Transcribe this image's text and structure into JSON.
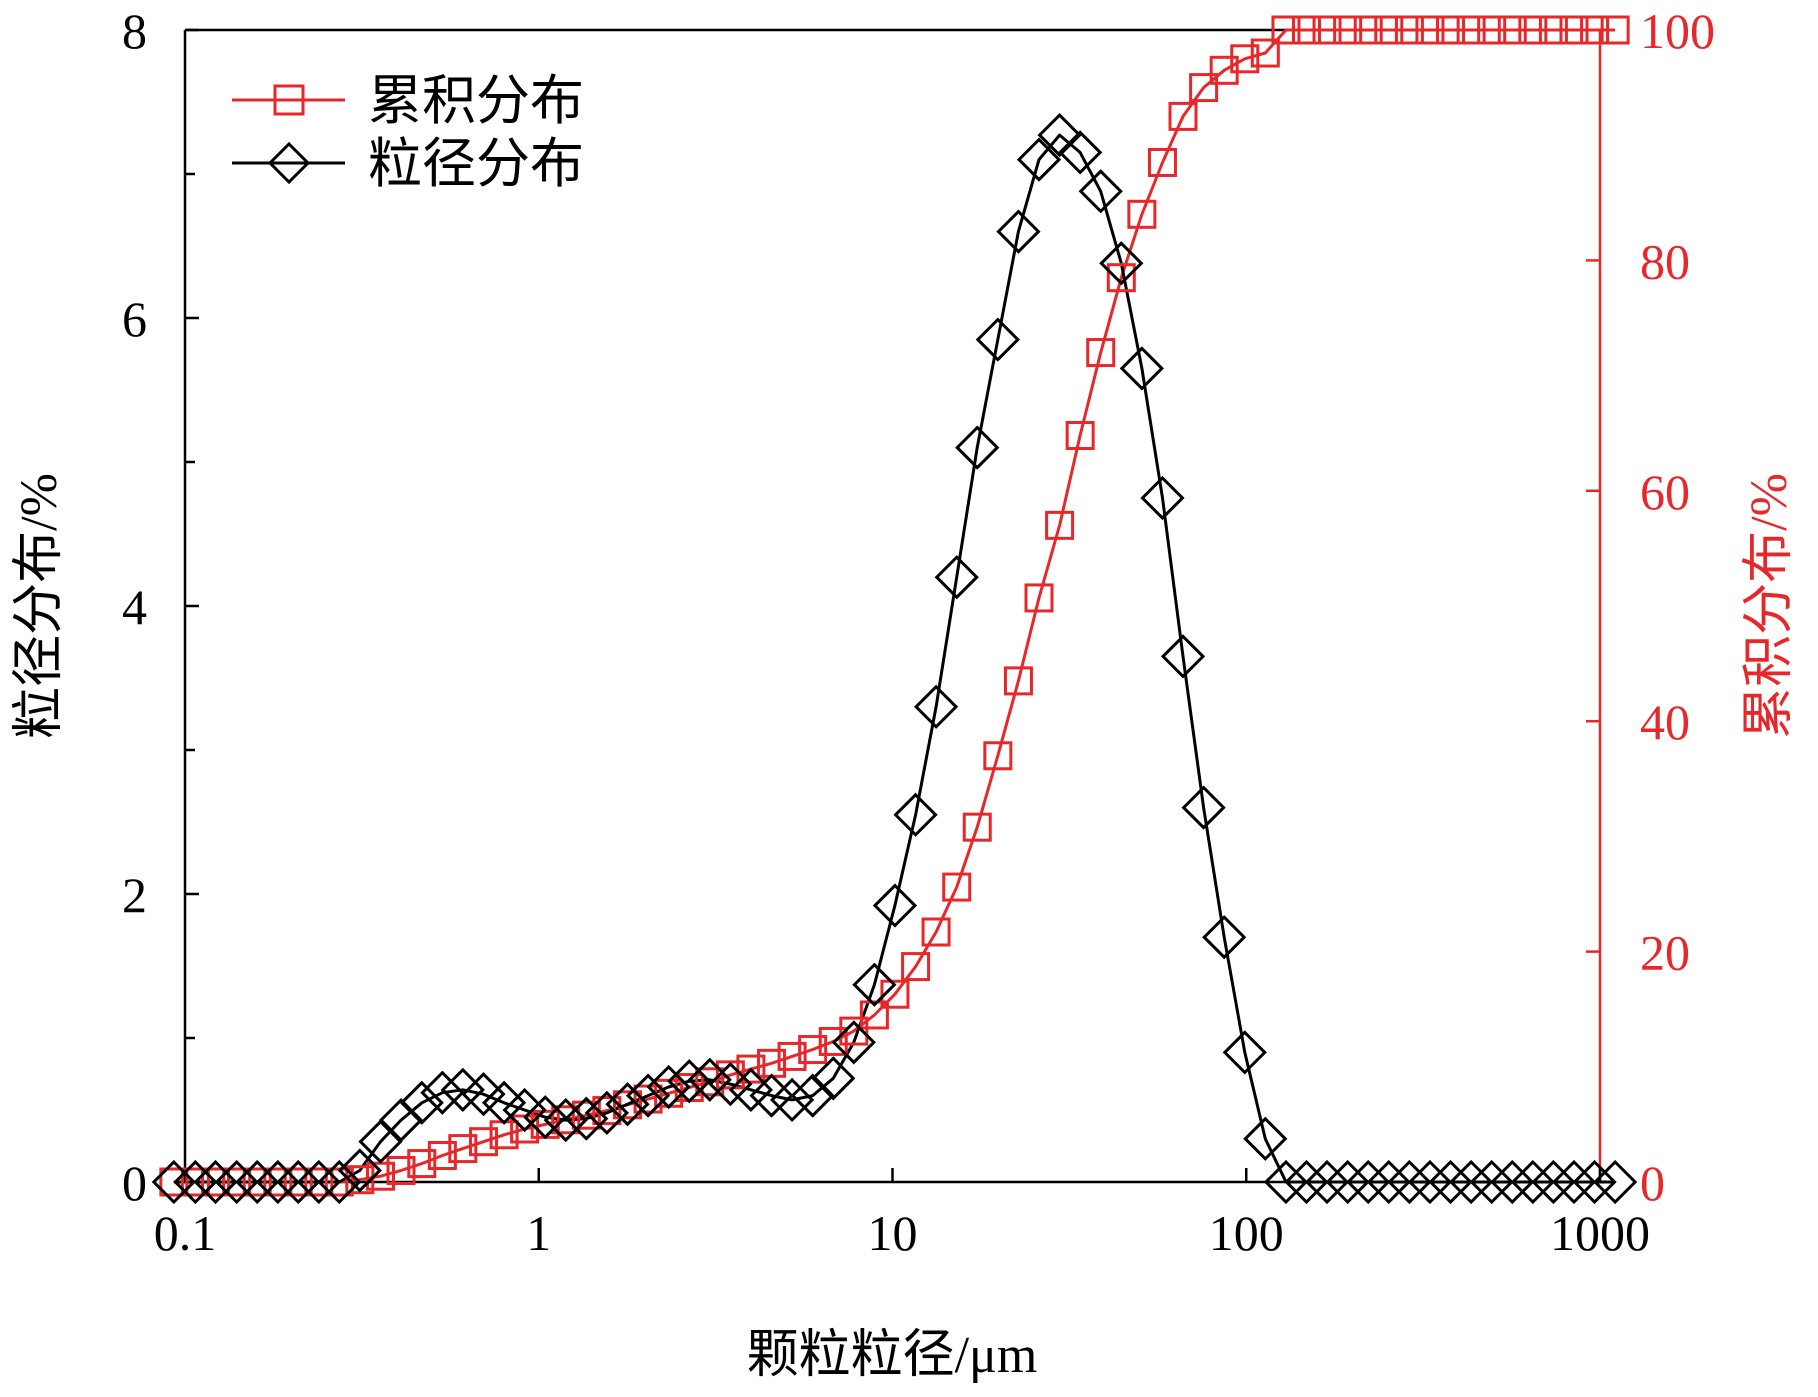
{
  "chart_data": {
    "type": "line",
    "x_scale": "log",
    "xlim": [
      0.1,
      1000
    ],
    "x_ticks": [
      0.1,
      1,
      10,
      100,
      1000
    ],
    "x_tick_labels": [
      "0.1",
      "1",
      "10",
      "100",
      "1000"
    ],
    "xlabel": "颗粒粒径/μm",
    "y_left": {
      "label": "粒径分布/%",
      "lim": [
        0,
        8
      ],
      "ticks": [
        0,
        2,
        4,
        6,
        8
      ],
      "tick_labels": [
        "0",
        "2",
        "4",
        "6",
        "8"
      ],
      "color": "#000000"
    },
    "y_right": {
      "label": "累积分布/%",
      "lim": [
        0,
        100
      ],
      "ticks": [
        0,
        20,
        40,
        60,
        80,
        100
      ],
      "tick_labels": [
        "0",
        "20",
        "40",
        "60",
        "80",
        "100"
      ],
      "color": "#e8272a"
    },
    "legend_position": "top-left",
    "grid": false,
    "series": [
      {
        "name": "累积分布",
        "axis": "right",
        "marker": "square",
        "color": "#e8272a",
        "x": [
          0.093,
          0.107,
          0.122,
          0.14,
          0.16,
          0.183,
          0.209,
          0.239,
          0.273,
          0.312,
          0.357,
          0.408,
          0.467,
          0.534,
          0.61,
          0.698,
          0.798,
          0.912,
          1.043,
          1.192,
          1.363,
          1.558,
          1.782,
          2.037,
          2.329,
          2.663,
          3.044,
          3.481,
          3.979,
          4.55,
          5.202,
          5.947,
          6.8,
          7.774,
          8.888,
          10.16,
          11.62,
          13.28,
          15.19,
          17.36,
          19.85,
          22.7,
          25.95,
          29.67,
          33.92,
          38.78,
          44.34,
          50.69,
          57.96,
          66.26,
          75.76,
          86.62,
          99.04,
          113.2,
          129.5,
          148.0,
          169.2,
          193.5,
          221.2,
          252.9,
          289.2,
          330.6,
          378.0,
          432.2,
          494.1,
          564.9,
          645.9,
          738.4,
          844.3,
          965.3,
          1103.6
        ],
        "y": [
          0,
          0,
          0,
          0,
          0,
          0,
          0,
          0,
          0,
          0.2,
          0.5,
          1.0,
          1.6,
          2.3,
          2.9,
          3.5,
          4.1,
          4.6,
          5.0,
          5.4,
          5.8,
          6.2,
          6.7,
          7.2,
          7.7,
          8.2,
          8.7,
          9.3,
          9.8,
          10.3,
          10.9,
          11.5,
          12.2,
          13.1,
          14.5,
          16.3,
          18.7,
          21.7,
          25.6,
          30.8,
          37.0,
          43.5,
          50.7,
          57.0,
          64.8,
          72.0,
          78.5,
          84.0,
          88.5,
          92.5,
          95.0,
          96.5,
          97.5,
          98.0,
          100,
          100,
          100,
          100,
          100,
          100,
          100,
          100,
          100,
          100,
          100,
          100,
          100,
          100,
          100,
          100,
          100
        ]
      },
      {
        "name": "粒径分布",
        "axis": "left",
        "marker": "diamond",
        "color": "#000000",
        "x": [
          0.093,
          0.107,
          0.122,
          0.14,
          0.16,
          0.183,
          0.209,
          0.239,
          0.273,
          0.312,
          0.357,
          0.408,
          0.467,
          0.534,
          0.61,
          0.698,
          0.798,
          0.912,
          1.043,
          1.192,
          1.363,
          1.558,
          1.782,
          2.037,
          2.329,
          2.663,
          3.044,
          3.481,
          3.979,
          4.55,
          5.202,
          5.947,
          6.8,
          7.774,
          8.888,
          10.16,
          11.62,
          13.28,
          15.19,
          17.36,
          19.85,
          22.7,
          25.95,
          29.67,
          33.92,
          38.78,
          44.34,
          50.69,
          57.96,
          66.26,
          75.76,
          86.62,
          99.04,
          113.2,
          129.5,
          148.0,
          169.2,
          193.5,
          221.2,
          252.9,
          289.2,
          330.6,
          378.0,
          432.2,
          494.1,
          564.9,
          645.9,
          738.4,
          844.3,
          965.3,
          1103.6
        ],
        "y": [
          0,
          0,
          0,
          0,
          0,
          0,
          0,
          0,
          0,
          0.08,
          0.28,
          0.43,
          0.55,
          0.62,
          0.64,
          0.61,
          0.55,
          0.5,
          0.45,
          0.43,
          0.44,
          0.48,
          0.54,
          0.6,
          0.66,
          0.7,
          0.71,
          0.68,
          0.64,
          0.6,
          0.57,
          0.6,
          0.72,
          0.97,
          1.37,
          1.92,
          2.55,
          3.3,
          4.2,
          5.1,
          5.85,
          6.6,
          7.1,
          7.27,
          7.15,
          6.88,
          6.38,
          5.65,
          4.75,
          3.65,
          2.6,
          1.7,
          0.9,
          0.3,
          0,
          0,
          0,
          0,
          0,
          0,
          0,
          0,
          0,
          0,
          0,
          0,
          0,
          0,
          0,
          0,
          0
        ]
      }
    ]
  }
}
